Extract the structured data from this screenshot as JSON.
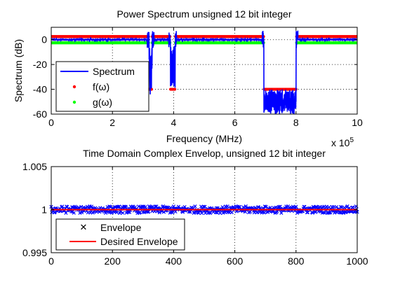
{
  "chart_data": [
    {
      "type": "line",
      "title": "Power Spectrum unsigned 12 bit integer",
      "xlabel": "Frequency (MHz)",
      "ylabel": "Spectrum (dB)",
      "x_exponent_label": "x 10",
      "x_exponent_power": "5",
      "xlim": [
        0,
        10
      ],
      "ylim": [
        -60,
        10
      ],
      "xticks": [
        0,
        2,
        4,
        6,
        8,
        10
      ],
      "yticks": [
        0,
        -20,
        -40,
        -60
      ],
      "xtick_labels": [
        "0",
        "2",
        "4",
        "6",
        "8",
        "10"
      ],
      "ytick_labels": [
        "0",
        "-20",
        "-40",
        "-60"
      ],
      "grid": true,
      "legend_position": "bottom-left",
      "series": [
        {
          "name": "Spectrum",
          "kind": "line",
          "color": "#0000ff",
          "passband_level": 0,
          "stopbands": [
            {
              "x": [
                3.2,
                3.3
              ],
              "floor": -45
            },
            {
              "x": [
                3.9,
                4.05
              ],
              "floor": -40
            },
            {
              "x": [
                6.95,
                8.0
              ],
              "floor": -60
            }
          ]
        },
        {
          "name": "f(ω)",
          "kind": "points",
          "color": "#ff0000",
          "level_passband": 2.5,
          "level_stopband": -40
        },
        {
          "name": "g(ω)",
          "kind": "points",
          "color": "#00ff00",
          "level_passband": -2.5
        }
      ]
    },
    {
      "type": "scatter",
      "title": "Time Domain Complex Envelop, unsigned 12 bit integer",
      "xlabel": "",
      "ylabel": "",
      "xlim": [
        0,
        1000
      ],
      "ylim": [
        0.995,
        1.005
      ],
      "xticks": [
        0,
        200,
        400,
        600,
        800,
        1000
      ],
      "yticks": [
        1.005,
        1,
        0.995
      ],
      "xtick_labels": [
        "0",
        "200",
        "400",
        "600",
        "800",
        "1000"
      ],
      "ytick_labels": [
        "1.005",
        "1",
        "0.995"
      ],
      "grid": true,
      "legend_position": "bottom-left",
      "series": [
        {
          "name": "Envelope",
          "kind": "points",
          "color": "#0000ff",
          "center": 1.0,
          "spread": 0.0004
        },
        {
          "name": "Desired Envelope",
          "kind": "line",
          "color": "#ff0000",
          "value": 1.0
        }
      ]
    }
  ]
}
